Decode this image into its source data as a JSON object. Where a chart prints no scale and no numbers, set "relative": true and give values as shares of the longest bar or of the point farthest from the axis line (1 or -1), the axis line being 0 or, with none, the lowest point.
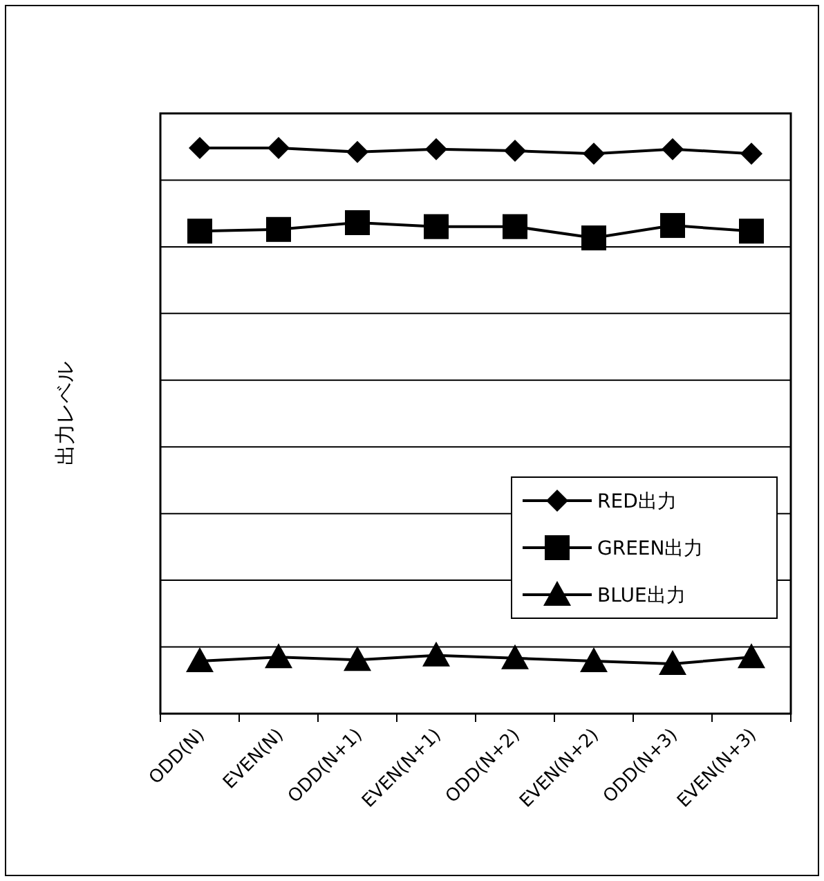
{
  "chart_data": {
    "type": "line",
    "relative": true,
    "ylabel": "出力レベル",
    "grid": "y",
    "legend": "bottom right",
    "categories": [
      "ODD(N)",
      "EVEN(N)",
      "ODD(N+1)",
      "EVEN(N+1)",
      "ODD(N+2)",
      "EVEN(N+2)",
      "ODD(N+3)",
      "EVEN(N+3)"
    ],
    "series": [
      {
        "name": "RED出力",
        "color": "#000000",
        "marker": "diamond",
        "values": [
          1,
          1,
          0.993,
          0.998,
          0.995,
          0.99,
          0.998,
          0.99
        ]
      },
      {
        "name": "GREEN出力",
        "color": "#000000",
        "marker": "square",
        "values": [
          0.853,
          0.856,
          0.868,
          0.861,
          0.861,
          0.841,
          0.863,
          0.853
        ]
      },
      {
        "name": "BLUE出力",
        "color": "#000000",
        "marker": "triangle",
        "values": [
          0.093,
          0.1,
          0.095,
          0.103,
          0.098,
          0.093,
          0.088,
          0.1
        ]
      }
    ]
  }
}
